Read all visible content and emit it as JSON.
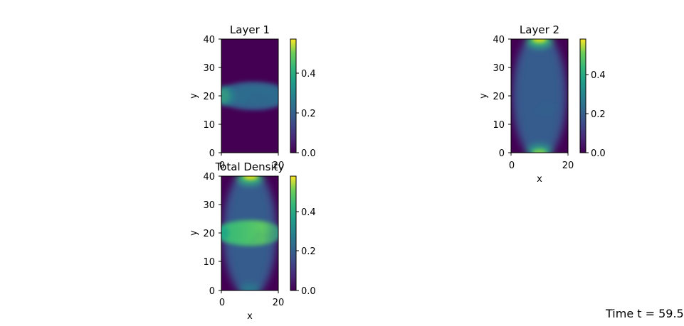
{
  "figure": {
    "time_label": "Time t = 59.5"
  },
  "colors": {
    "viridis_min": "#440154",
    "viridis_mid": "#21918c",
    "viridis_max": "#fde725"
  },
  "chart_data": [
    {
      "type": "heatmap",
      "title": "Layer 1",
      "xlabel": "",
      "ylabel": "y",
      "xlim": [
        0,
        20
      ],
      "ylim": [
        0,
        40
      ],
      "xticks": [
        "0",
        "20"
      ],
      "yticks": [
        "0",
        "10",
        "20",
        "30",
        "40"
      ],
      "colormap": "viridis",
      "colorbar": {
        "range": [
          0,
          0.57
        ],
        "ticks": [
          "0.0",
          "0.2",
          "0.4"
        ]
      },
      "features": "horizontal band centred at y≈20 spanning y≈14–26, brightest (~0.35) at x=0, with diagonal stripes; zero elsewhere"
    },
    {
      "type": "heatmap",
      "title": "Layer 2",
      "xlabel": "x",
      "ylabel": "y",
      "xlim": [
        0,
        20
      ],
      "ylim": [
        0,
        40
      ],
      "xticks": [
        "0",
        "20"
      ],
      "yticks": [
        "0",
        "10",
        "20",
        "30",
        "40"
      ],
      "colormap": "viridis",
      "colorbar": {
        "range": [
          0,
          0.58
        ],
        "ticks": [
          "0.0",
          "0.2",
          "0.4"
        ]
      },
      "features": "vertical elliptical lobe centred at x≈10 spanning full height, peaks (~0.55) near y=0 and y=40, diagonal stripes near y≈15–22"
    },
    {
      "type": "heatmap",
      "title": "Total Density",
      "xlabel": "x",
      "ylabel": "y",
      "xlim": [
        0,
        20
      ],
      "ylim": [
        0,
        40
      ],
      "xticks": [
        "0",
        "20"
      ],
      "yticks": [
        "0",
        "10",
        "20",
        "30",
        "40"
      ],
      "colormap": "viridis",
      "colorbar": {
        "range": [
          0,
          0.58
        ],
        "ticks": [
          "0.0",
          "0.2",
          "0.4"
        ]
      },
      "features": "sum of Layer 1 and Layer 2: vertical lobe plus horizontal band at y≈20, bright at top (y≈40) and at band centre"
    }
  ]
}
